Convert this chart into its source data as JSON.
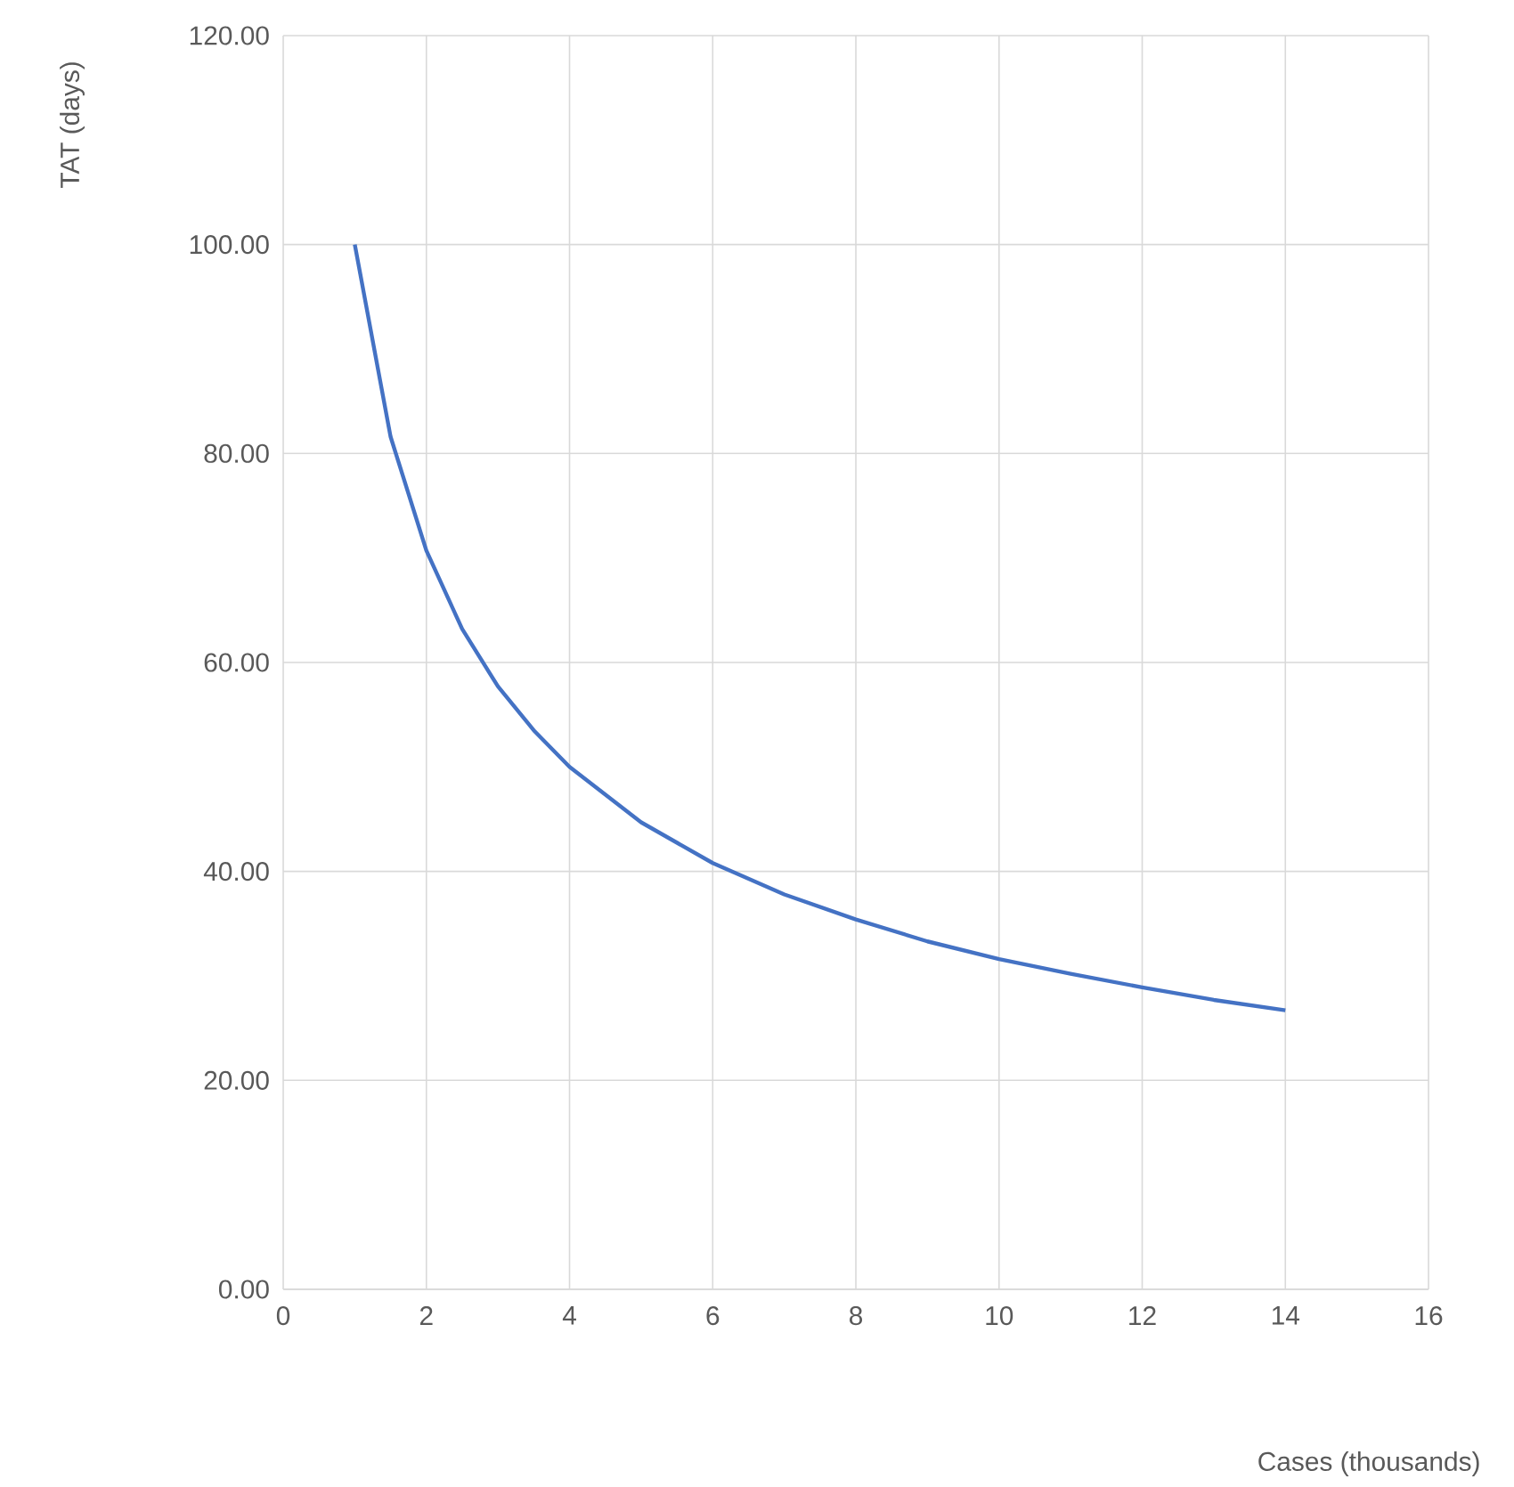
{
  "chart_data": {
    "type": "line",
    "xlabel": "Cases (thousands)",
    "ylabel": "TAT (days)",
    "x": [
      1,
      1.5,
      2,
      2.5,
      3,
      3.5,
      4,
      5,
      6,
      7,
      8,
      9,
      10,
      11,
      12,
      13,
      14
    ],
    "series": [
      {
        "color": "#4472c4",
        "values": [
          100,
          81.6,
          70.7,
          63.2,
          57.7,
          53.5,
          50,
          44.7,
          40.8,
          37.8,
          35.4,
          33.3,
          31.6,
          30.2,
          28.9,
          27.7,
          26.7
        ]
      }
    ],
    "xlim": [
      0,
      16
    ],
    "ylim": [
      0,
      120
    ],
    "xticks": [
      0,
      2,
      4,
      6,
      8,
      10,
      12,
      14,
      16
    ],
    "yticks": [
      {
        "value": 0,
        "label": "0.00"
      },
      {
        "value": 20,
        "label": "20.00"
      },
      {
        "value": 40,
        "label": "40.00"
      },
      {
        "value": 60,
        "label": "60.00"
      },
      {
        "value": 80,
        "label": "80.00"
      },
      {
        "value": 100,
        "label": "100.00"
      },
      {
        "value": 120,
        "label": "120.00"
      }
    ],
    "grid": true,
    "line_style": "solid"
  }
}
